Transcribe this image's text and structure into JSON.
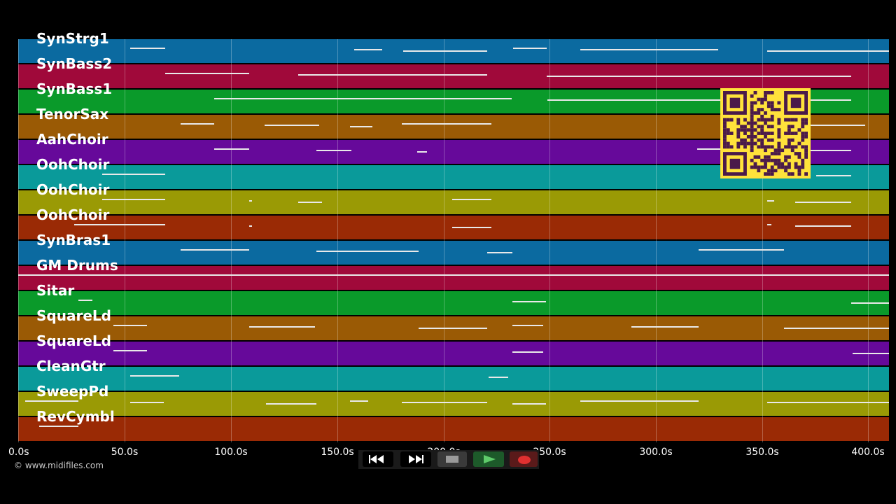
{
  "tracks": [
    {
      "name": "SynStrg1",
      "color": "#0b6aa0"
    },
    {
      "name": "SynBass2",
      "color": "#a0093a"
    },
    {
      "name": "SynBass1",
      "color": "#0a9a2a"
    },
    {
      "name": "TenorSax",
      "color": "#9a5a05"
    },
    {
      "name": "AahChoir",
      "color": "#66099a"
    },
    {
      "name": "OohChoir",
      "color": "#0a9a9a"
    },
    {
      "name": "OohChoir",
      "color": "#9a9a05"
    },
    {
      "name": "OohChoir",
      "color": "#9a2a05"
    },
    {
      "name": "SynBras1",
      "color": "#0b6aa0"
    },
    {
      "name": "GM Drums",
      "color": "#a0093a"
    },
    {
      "name": "Sitar",
      "color": "#0a9a2a"
    },
    {
      "name": "SquareLd",
      "color": "#9a5a05"
    },
    {
      "name": "SquareLd",
      "color": "#66099a"
    },
    {
      "name": "CleanGtr",
      "color": "#0a9a9a"
    },
    {
      "name": "SweepPd",
      "color": "#9a9a05"
    },
    {
      "name": "RevCymbl",
      "color": "#9a2a05"
    }
  ],
  "time_axis": {
    "ticks": [
      "0.0s",
      "50.0s",
      "100.0s",
      "150.0s",
      "200.0s",
      "250.0s",
      "300.0s",
      "350.0s",
      "400.0s"
    ]
  },
  "copyright": "© www.midifiles.com",
  "transport": {
    "buttons": [
      {
        "name": "rewind-button",
        "icon": "rewind-icon"
      },
      {
        "name": "fast-forward-button",
        "icon": "fast-forward-icon"
      },
      {
        "name": "stop-button",
        "icon": "stop-icon"
      },
      {
        "name": "play-button",
        "icon": "play-icon"
      },
      {
        "name": "record-button",
        "icon": "record-icon"
      }
    ]
  },
  "qr_code": {
    "icon": "qr-code-icon",
    "color": "#ffe23b"
  }
}
